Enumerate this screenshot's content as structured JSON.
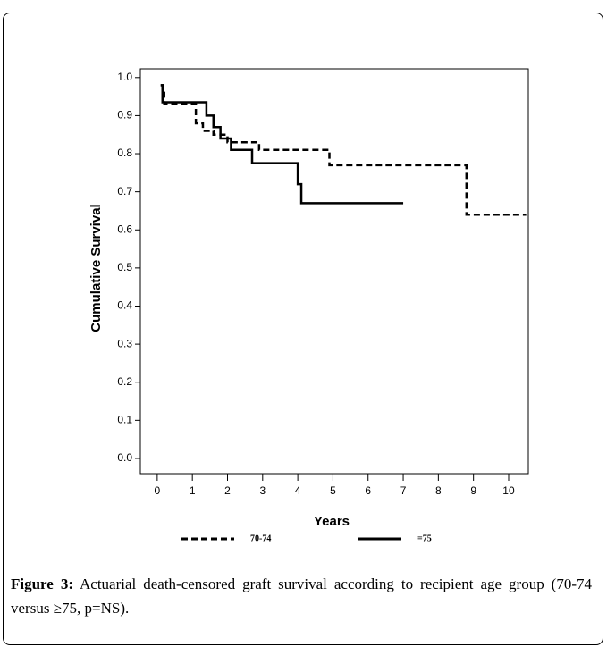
{
  "chart_data": {
    "type": "line",
    "x_label": "Years",
    "y_label": "Cumulative Survival",
    "xlim": [
      -0.48,
      10.56
    ],
    "xticks": [
      0,
      1,
      2,
      3,
      4,
      5,
      6,
      7,
      8,
      9,
      10
    ],
    "ylim": [
      -0.04,
      1.023
    ],
    "yticks": [
      {
        "value": 0,
        "label": "0.0"
      },
      0.1,
      0.2,
      0.3,
      0.4,
      0.5,
      0.6,
      0.7,
      0.8,
      0.9,
      {
        "value": 1,
        "label": "1.0"
      }
    ],
    "series": [
      {
        "name": "70-74",
        "color": "#000000",
        "dash": "7,4",
        "x": [
          0.1,
          0.15,
          0.15,
          0.2,
          0.2,
          1.1,
          1.1,
          1.3,
          1.3,
          1.6,
          1.6,
          2.0,
          2.0,
          2.9,
          2.9,
          4.9,
          4.9,
          8.8,
          8.8,
          10.5
        ],
        "values": [
          0.98,
          0.98,
          0.96,
          0.96,
          0.93,
          0.93,
          0.88,
          0.88,
          0.86,
          0.86,
          0.85,
          0.85,
          0.83,
          0.83,
          0.81,
          0.81,
          0.77,
          0.77,
          0.64,
          0.64
        ]
      },
      {
        "name": "=75",
        "color": "#000000",
        "dash": "none",
        "x": [
          0.1,
          0.15,
          0.15,
          1.4,
          1.4,
          1.6,
          1.6,
          1.8,
          1.8,
          2.1,
          2.1,
          2.7,
          2.7,
          4.0,
          4.0,
          4.1,
          4.1,
          7.0
        ],
        "values": [
          0.98,
          0.98,
          0.935,
          0.935,
          0.9,
          0.9,
          0.87,
          0.87,
          0.84,
          0.84,
          0.81,
          0.81,
          0.775,
          0.775,
          0.72,
          0.72,
          0.67,
          0.67
        ]
      }
    ],
    "caption_label": "Figure 3:",
    "caption": "Actuarial death-censored graft survival according to recipient age group (70-74 versus ≥75, p=NS)."
  }
}
